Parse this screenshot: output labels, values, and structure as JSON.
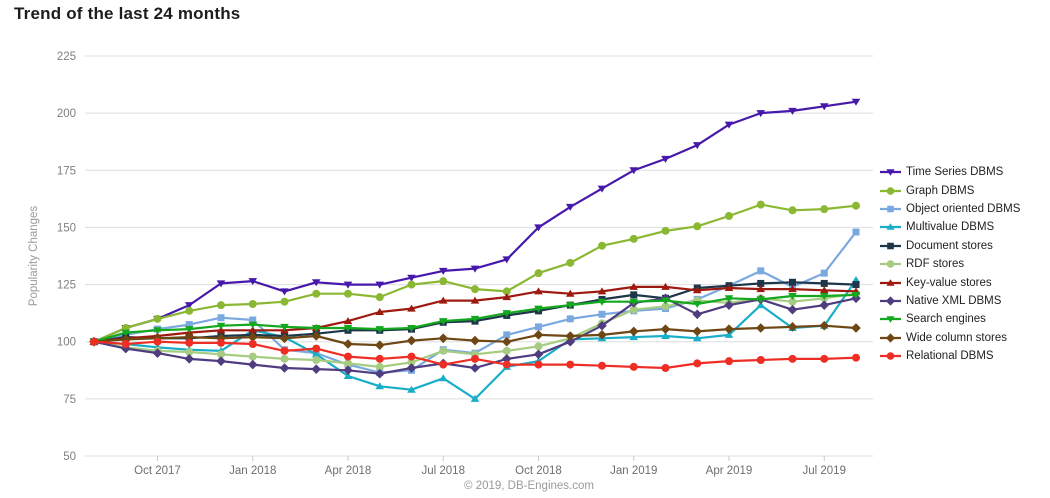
{
  "title": "Trend of the last 24 months",
  "footer": "© 2019, DB-Engines.com",
  "y_axis": {
    "label": "Popularity Changes",
    "ticks": [
      225,
      200,
      175,
      150,
      125,
      100,
      75,
      50
    ]
  },
  "x_axis": {
    "ticks": [
      "Oct 2017",
      "Jan 2018",
      "Apr 2018",
      "Jul 2018",
      "Oct 2018",
      "Jan 2019",
      "Apr 2019",
      "Jul 2019"
    ],
    "tick_month_indices": [
      2,
      5,
      8,
      11,
      14,
      17,
      20,
      23
    ]
  },
  "styles": {
    "background": "#ffffff",
    "grid_color": "#dddddd",
    "tick_color": "#c9c9c9",
    "axis_text_color": "#808080",
    "y_label_color": "#9a9a9a",
    "title_color": "#1d1d1d",
    "footer_color": "#9a9a9a",
    "legend_text_color": "#222222"
  },
  "chart_data": {
    "type": "line",
    "title": "Trend of the last 24 months",
    "ylabel": "Popularity Changes",
    "ylim": [
      50,
      225
    ],
    "grid": true,
    "legend_position": "right",
    "x": [
      "Aug 2017",
      "Sep 2017",
      "Oct 2017",
      "Nov 2017",
      "Dec 2017",
      "Jan 2018",
      "Feb 2018",
      "Mar 2018",
      "Apr 2018",
      "May 2018",
      "Jun 2018",
      "Jul 2018",
      "Aug 2018",
      "Sep 2018",
      "Oct 2018",
      "Nov 2018",
      "Dec 2018",
      "Jan 2019",
      "Feb 2019",
      "Mar 2019",
      "Apr 2019",
      "May 2019",
      "Jun 2019",
      "Jul 2019",
      "Aug 2019"
    ],
    "series": [
      {
        "name": "Time Series DBMS",
        "color": "#4618ab",
        "marker": "triangle-down",
        "values": [
          100,
          106,
          110,
          116,
          125.5,
          126.5,
          122,
          126,
          125,
          125,
          128,
          131,
          132,
          136,
          150,
          159,
          167,
          175,
          180,
          186,
          195,
          200,
          201,
          203,
          205
        ]
      },
      {
        "name": "Graph DBMS",
        "color": "#8ab832",
        "marker": "circle",
        "values": [
          100,
          106,
          110,
          113.5,
          116,
          116.5,
          117.5,
          121,
          121,
          119.5,
          125,
          126.5,
          123,
          122,
          130,
          134.5,
          142,
          145,
          148.5,
          150.5,
          155,
          160,
          157.5,
          158,
          159.5
        ]
      },
      {
        "name": "Object oriented DBMS",
        "color": "#7aa9e0",
        "marker": "square",
        "values": [
          100,
          103,
          105.5,
          107.5,
          110.5,
          109.5,
          96.5,
          95,
          90,
          86.5,
          87.5,
          96.5,
          95,
          103,
          106.5,
          110,
          112,
          113.5,
          114.5,
          118.5,
          124.5,
          131,
          124,
          130,
          148
        ]
      },
      {
        "name": "Multivalue DBMS",
        "color": "#19aec8",
        "marker": "triangle-up",
        "values": [
          100,
          99,
          97.5,
          96.5,
          96,
          105,
          102,
          94.5,
          85,
          80.5,
          79,
          84,
          75,
          89,
          91.5,
          101,
          101.5,
          102,
          102.5,
          101.5,
          103,
          116,
          106,
          107,
          127
        ]
      },
      {
        "name": "Document stores",
        "color": "#1d3649",
        "marker": "square",
        "values": [
          100,
          102,
          101.5,
          101.5,
          102.5,
          103,
          102.5,
          103.5,
          105,
          105,
          105.5,
          108.5,
          109,
          111.5,
          113.5,
          116,
          118.5,
          120.5,
          119,
          123.5,
          124.5,
          125.5,
          126,
          125.5,
          125
        ]
      },
      {
        "name": "RDF stores",
        "color": "#a5cc80",
        "marker": "circle",
        "values": [
          100,
          97.5,
          96,
          95.5,
          94.5,
          93.5,
          92.5,
          92,
          90.5,
          89,
          91,
          96,
          94.5,
          96,
          98,
          101.5,
          108,
          114,
          115.5,
          118,
          117,
          119,
          117.5,
          119,
          121
        ]
      },
      {
        "name": "Key-value stores",
        "color": "#9e1a10",
        "marker": "triangle-up",
        "values": [
          100,
          101.5,
          102.5,
          104,
          105,
          105,
          105,
          106,
          109,
          113,
          114.5,
          118,
          118,
          119.5,
          122,
          121,
          122,
          124,
          124,
          122.5,
          123.5,
          123,
          123,
          122.5,
          122
        ]
      },
      {
        "name": "Native XML DBMS",
        "color": "#4f3d80",
        "marker": "diamond",
        "values": [
          100,
          97,
          95,
          92.5,
          91.5,
          90,
          88.5,
          88,
          87.5,
          86,
          88.5,
          90.5,
          88.5,
          92.5,
          94.5,
          100,
          107,
          117,
          119,
          112,
          116,
          118.5,
          114,
          116,
          119
        ]
      },
      {
        "name": "Search engines",
        "color": "#13a81e",
        "marker": "triangle-down",
        "values": [
          100,
          104,
          105,
          105.5,
          107,
          107.5,
          106.5,
          106,
          106,
          105.5,
          106,
          109,
          110,
          112.5,
          114.5,
          116,
          117.5,
          117.5,
          118,
          116.5,
          119,
          118.5,
          120,
          120,
          120.5
        ]
      },
      {
        "name": "Wide column stores",
        "color": "#6e4714",
        "marker": "diamond",
        "values": [
          100,
          101,
          101.5,
          102,
          101.5,
          102,
          101.5,
          102.5,
          99,
          98.5,
          100.5,
          101.5,
          100.5,
          100,
          103,
          102.5,
          103,
          104.5,
          105.5,
          104.5,
          105.5,
          106,
          106.5,
          107,
          106
        ]
      },
      {
        "name": "Relational DBMS",
        "color": "#ee2e24",
        "marker": "circle",
        "values": [
          100,
          99,
          100,
          99.5,
          99.5,
          99,
          96,
          97,
          93.5,
          92.5,
          93.5,
          90,
          92.5,
          90,
          90,
          90,
          89.5,
          89,
          88.5,
          90.5,
          91.5,
          92,
          92.5,
          92.5,
          93
        ]
      }
    ]
  }
}
